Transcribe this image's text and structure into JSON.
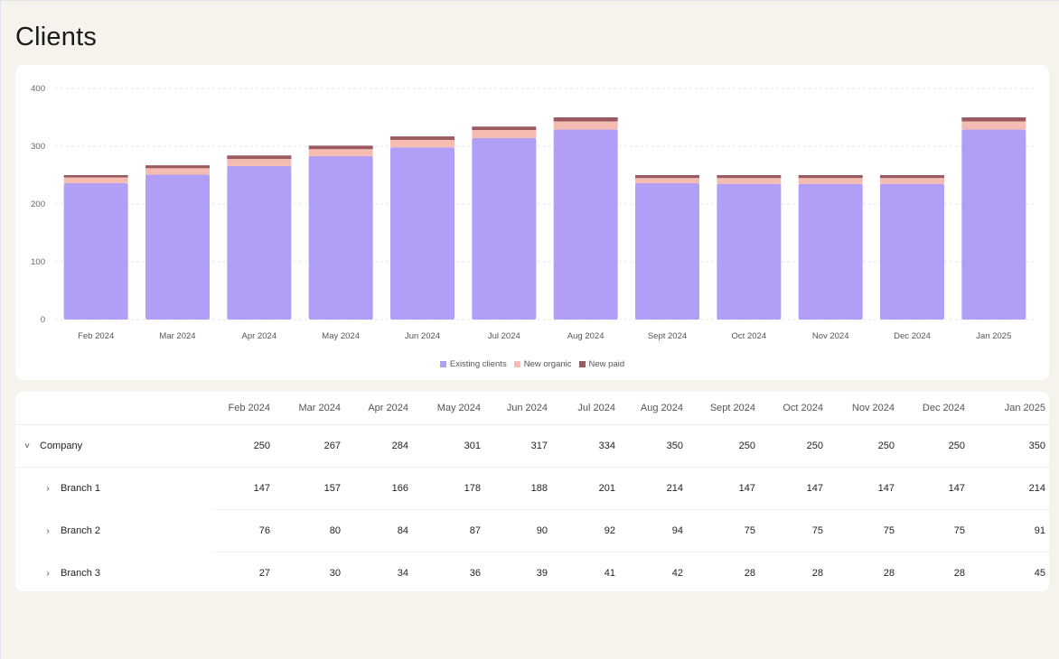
{
  "page": {
    "title": "Clients"
  },
  "chart_data": {
    "type": "bar",
    "stacked": true,
    "categories": [
      "Feb 2024",
      "Mar 2024",
      "Apr 2024",
      "May 2024",
      "Jun 2024",
      "Jul 2024",
      "Aug 2024",
      "Sept 2024",
      "Oct 2024",
      "Nov 2024",
      "Dec 2024",
      "Jan 2025"
    ],
    "series": [
      {
        "name": "Existing clients",
        "color": "#b19ef7",
        "values": [
          236,
          251,
          266,
          283,
          298,
          314,
          329,
          236,
          235,
          235,
          235,
          329
        ]
      },
      {
        "name": "New organic",
        "color": "#f5bdb2",
        "values": [
          10,
          11,
          12,
          12,
          13,
          14,
          14,
          9,
          10,
          10,
          10,
          14
        ]
      },
      {
        "name": "New paid",
        "color": "#9b5960",
        "values": [
          4,
          5,
          6,
          6,
          6,
          6,
          7,
          5,
          5,
          5,
          5,
          7
        ]
      }
    ],
    "yticks": [
      "0",
      "100",
      "200",
      "300",
      "400"
    ],
    "ylim": [
      0,
      400
    ],
    "grid": true,
    "legend_position": "bottom-center"
  },
  "table": {
    "columns": [
      "Feb 2024",
      "Mar 2024",
      "Apr 2024",
      "May 2024",
      "Jun 2024",
      "Jul 2024",
      "Aug 2024",
      "Sept 2024",
      "Oct 2024",
      "Nov 2024",
      "Dec 2024",
      "Jan 2025"
    ],
    "rows": [
      {
        "label": "Company",
        "toggle": "˅",
        "values": [
          "250",
          "267",
          "284",
          "301",
          "317",
          "334",
          "350",
          "250",
          "250",
          "250",
          "250",
          "350"
        ]
      },
      {
        "label": "Branch 1",
        "toggle": "›",
        "values": [
          "147",
          "157",
          "166",
          "178",
          "188",
          "201",
          "214",
          "147",
          "147",
          "147",
          "147",
          "214"
        ]
      },
      {
        "label": "Branch 2",
        "toggle": "›",
        "values": [
          "76",
          "80",
          "84",
          "87",
          "90",
          "92",
          "94",
          "75",
          "75",
          "75",
          "75",
          "91"
        ]
      },
      {
        "label": "Branch 3",
        "toggle": "›",
        "values": [
          "27",
          "30",
          "34",
          "36",
          "39",
          "41",
          "42",
          "28",
          "28",
          "28",
          "28",
          "45"
        ]
      }
    ]
  }
}
